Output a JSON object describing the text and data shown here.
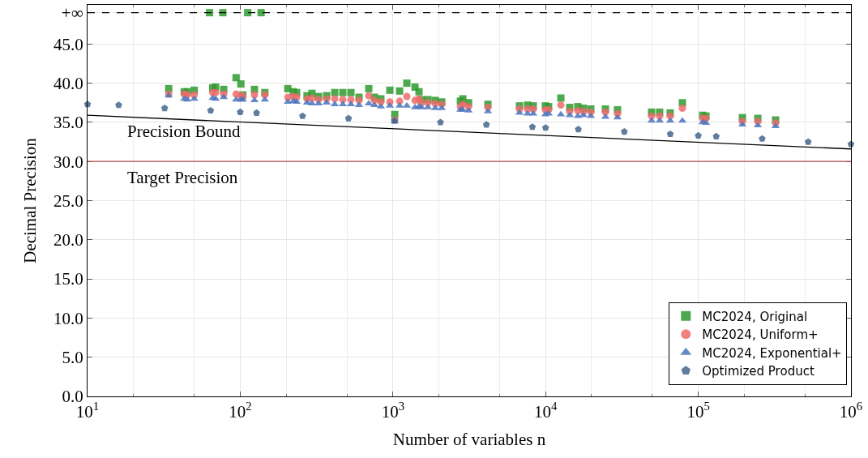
{
  "chart_data": {
    "type": "scatter",
    "xlabel": "Number of variables n",
    "ylabel": "Decimal Precision",
    "log": "x",
    "grid": true,
    "legend": "bottom right",
    "xlim": [
      10,
      1000000
    ],
    "xticks": [
      {
        "value": 10,
        "label": "10$^{1}$"
      },
      {
        "value": 100,
        "label": "10$^{2}$"
      },
      {
        "value": 1000,
        "label": "10$^{3}$"
      },
      {
        "value": 10000,
        "label": "10$^{4}$"
      },
      {
        "value": 100000,
        "label": "10$^{5}$"
      },
      {
        "value": 1000000,
        "label": "10$^{6}$"
      }
    ],
    "ylim": [
      0,
      50
    ],
    "yticks": [
      {
        "value": 0,
        "label": "0.0"
      },
      {
        "value": 5,
        "label": "5.0"
      },
      {
        "value": 10,
        "label": "10.0"
      },
      {
        "value": 15,
        "label": "15.0"
      },
      {
        "value": 20,
        "label": "20.0"
      },
      {
        "value": 25,
        "label": "25.0"
      },
      {
        "value": 30,
        "label": "30.0"
      },
      {
        "value": 35,
        "label": "35.0"
      },
      {
        "value": 40,
        "label": "40.0"
      },
      {
        "value": 45,
        "label": "45.0"
      },
      {
        "value": 49,
        "label": "+∞"
      }
    ],
    "x": [
      34,
      43,
      45,
      50,
      63,
      66,
      69,
      77,
      78,
      94,
      101,
      104,
      112,
      124,
      137,
      145,
      205,
      223,
      234,
      274,
      295,
      326,
      368,
      416,
      470,
      531,
      600,
      695,
      757,
      834,
      955,
      1028,
      1106,
      1234,
      1395,
      1482,
      1538,
      1695,
      1892,
      2088,
      2767,
      2870,
      3128,
      4190,
      6745,
      7621,
      8300,
      9970,
      10470,
      12590,
      14390,
      16260,
      17710,
      19780,
      24650,
      29580,
      49440,
      55850,
      65470,
      78680,
      106900,
      112300,
      194500,
      245400,
      320900
    ],
    "series": [
      {
        "name": "MC2024, Original",
        "color": "#2e9a2e",
        "marker": "square",
        "values": [
          39.3,
          38.9,
          38.9,
          39.1,
          49,
          39.4,
          39.5,
          49,
          39.2,
          40.7,
          39.9,
          38.5,
          49,
          39.2,
          49,
          38.8,
          39.3,
          38.9,
          38.8,
          38.4,
          38.7,
          38.3,
          38.4,
          38.8,
          38.8,
          38.8,
          38.2,
          39.3,
          38.2,
          38.0,
          39.1,
          36.0,
          39.0,
          40.0,
          39.5,
          38.9,
          37.9,
          37.9,
          37.8,
          37.6,
          37.7,
          38.0,
          37.5,
          37.3,
          37.1,
          37.2,
          37.1,
          37.1,
          37.0,
          38.1,
          36.9,
          37.0,
          36.8,
          36.7,
          36.7,
          36.6,
          36.3,
          36.3,
          36.2,
          37.5,
          35.9,
          35.8,
          35.6,
          35.5,
          35.3
        ]
      },
      {
        "name": "MC2024, Uniform+",
        "color": "#ee6a6a",
        "marker": "circle",
        "values": [
          38.6,
          38.6,
          38.5,
          38.5,
          null,
          38.8,
          38.8,
          null,
          38.6,
          38.6,
          38.4,
          38.3,
          null,
          38.5,
          null,
          38.5,
          38.2,
          38.3,
          38.2,
          38.0,
          38.1,
          37.9,
          38.0,
          38.0,
          37.9,
          37.9,
          37.8,
          38.4,
          37.8,
          37.6,
          37.6,
          35.3,
          37.7,
          38.3,
          37.8,
          38.0,
          37.5,
          37.5,
          37.4,
          37.3,
          37.0,
          37.3,
          37.0,
          36.9,
          36.7,
          36.7,
          36.7,
          36.6,
          36.6,
          37.2,
          36.4,
          36.5,
          36.4,
          36.3,
          36.3,
          36.1,
          35.8,
          35.8,
          35.8,
          36.8,
          35.5,
          35.5,
          35.1,
          35.1,
          34.9
        ]
      },
      {
        "name": "MC2024, Exponential+",
        "color": "#4a74bd",
        "marker": "triangle",
        "values": [
          38.4,
          38.0,
          37.9,
          38.0,
          null,
          38.1,
          38.0,
          null,
          38.2,
          37.9,
          37.9,
          37.9,
          null,
          37.8,
          null,
          37.9,
          37.6,
          37.7,
          37.6,
          37.5,
          37.4,
          37.4,
          37.5,
          37.3,
          37.3,
          37.3,
          37.2,
          37.4,
          37.2,
          37.0,
          37.1,
          35.1,
          37.1,
          37.1,
          36.9,
          37.0,
          36.9,
          36.9,
          36.8,
          36.8,
          36.6,
          36.6,
          36.5,
          36.4,
          36.2,
          36.1,
          36.1,
          36.0,
          36.1,
          36.0,
          35.9,
          35.8,
          35.9,
          35.8,
          35.7,
          35.6,
          35.2,
          35.2,
          35.2,
          35.2,
          35.0,
          34.9,
          34.7,
          34.6,
          34.5
        ]
      },
      {
        "name": "Optimized Product",
        "color": "#44668c",
        "x": [
          10,
          16,
          32,
          64,
          100,
          128,
          256,
          512,
          1024,
          2048,
          4096,
          8192,
          10000,
          16384,
          32768,
          65536,
          100000,
          131072,
          262144,
          524288,
          1000000
        ],
        "values": [
          37.3,
          37.2,
          36.8,
          36.5,
          36.3,
          36.2,
          35.8,
          35.5,
          35.2,
          35.0,
          34.7,
          34.4,
          34.3,
          34.1,
          33.8,
          33.5,
          33.3,
          33.2,
          32.9,
          32.5,
          32.2
        ]
      },
      {
        "name": "Precision Bound",
        "type": "line",
        "color": "#000000",
        "x": [
          10,
          1000000
        ],
        "values": [
          35.9,
          31.6
        ]
      }
    ],
    "ref_lines": [
      {
        "axis": "y",
        "value": 30,
        "label": "Target Precision",
        "color": "#b04848",
        "line_style": "solid"
      },
      {
        "axis": "y",
        "value": 49,
        "color": "#000000",
        "line_style": "dashed"
      }
    ]
  }
}
